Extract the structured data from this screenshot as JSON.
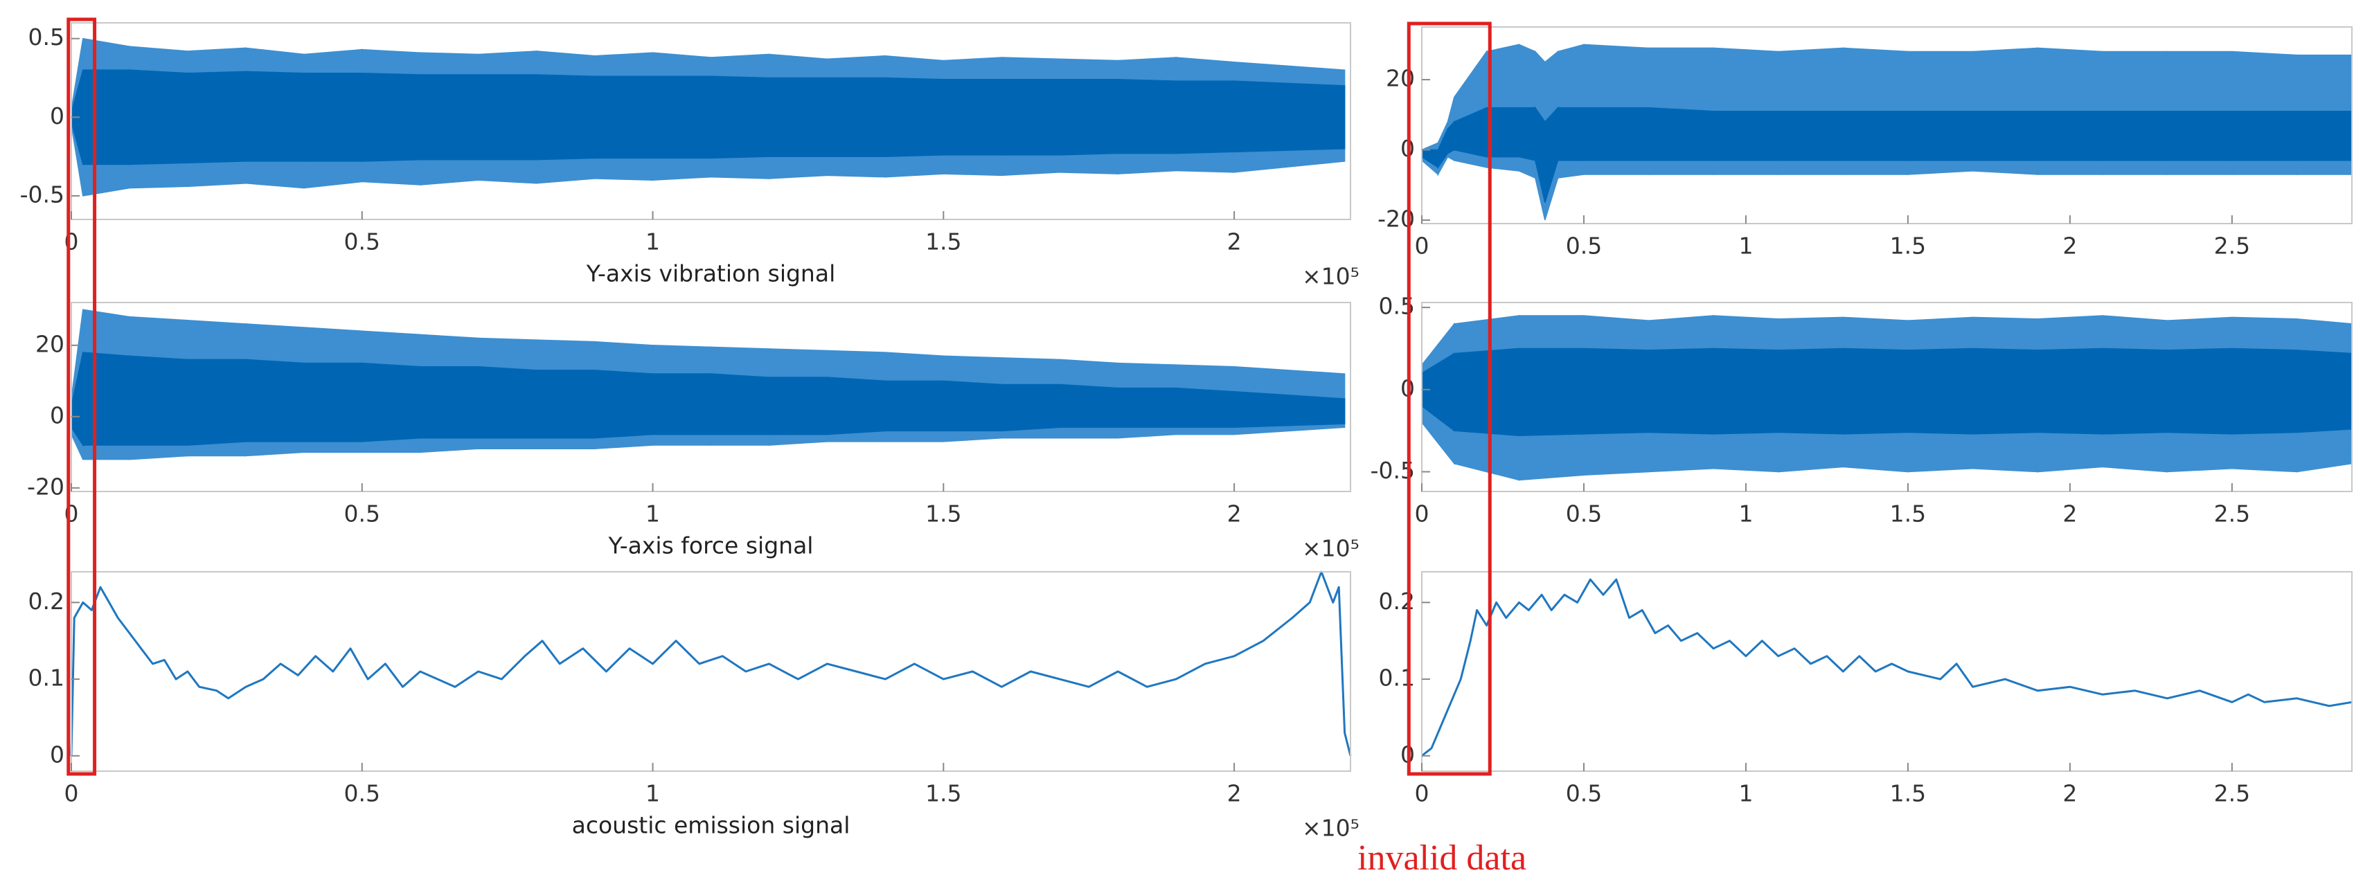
{
  "chart_data": [
    {
      "type": "band",
      "xlabel": "Y-axis vibration signal",
      "x_exponent": "×10⁵",
      "x": [
        0,
        0.02,
        0.1,
        0.2,
        0.3,
        0.4,
        0.5,
        0.6,
        0.7,
        0.8,
        0.9,
        1.0,
        1.1,
        1.2,
        1.3,
        1.4,
        1.5,
        1.6,
        1.7,
        1.8,
        1.9,
        2.0,
        2.19
      ],
      "series": [
        {
          "color": "#3d8fd1",
          "upper": [
            0.05,
            0.5,
            0.45,
            0.42,
            0.44,
            0.4,
            0.43,
            0.41,
            0.4,
            0.42,
            0.39,
            0.41,
            0.38,
            0.4,
            0.37,
            0.39,
            0.36,
            0.38,
            0.37,
            0.36,
            0.38,
            0.35,
            0.3
          ],
          "lower": [
            -0.05,
            -0.5,
            -0.45,
            -0.44,
            -0.42,
            -0.45,
            -0.41,
            -0.43,
            -0.4,
            -0.42,
            -0.39,
            -0.4,
            -0.38,
            -0.39,
            -0.37,
            -0.38,
            -0.36,
            -0.37,
            -0.35,
            -0.36,
            -0.34,
            -0.35,
            -0.28
          ]
        },
        {
          "color": "#0066b3",
          "upper": [
            0.03,
            0.3,
            0.3,
            0.28,
            0.29,
            0.28,
            0.28,
            0.27,
            0.27,
            0.27,
            0.26,
            0.26,
            0.26,
            0.25,
            0.25,
            0.25,
            0.24,
            0.24,
            0.24,
            0.24,
            0.23,
            0.23,
            0.2
          ],
          "lower": [
            -0.03,
            -0.3,
            -0.3,
            -0.29,
            -0.28,
            -0.28,
            -0.28,
            -0.27,
            -0.27,
            -0.27,
            -0.26,
            -0.26,
            -0.26,
            -0.25,
            -0.25,
            -0.25,
            -0.24,
            -0.24,
            -0.24,
            -0.23,
            -0.23,
            -0.22,
            -0.2
          ]
        }
      ],
      "xlim": [
        0,
        2.2
      ],
      "ylim": [
        -0.65,
        0.6
      ],
      "xticks": [
        0,
        0.5,
        1,
        1.5,
        2
      ],
      "yticks": [
        0.5,
        0,
        -0.5
      ]
    },
    {
      "type": "band",
      "xlabel": "Y-axis force signal",
      "x_exponent": "×10⁵",
      "x": [
        0,
        0.02,
        0.1,
        0.2,
        0.3,
        0.4,
        0.5,
        0.6,
        0.7,
        0.8,
        0.9,
        1.0,
        1.1,
        1.2,
        1.3,
        1.4,
        1.5,
        1.6,
        1.7,
        1.8,
        1.9,
        2.0,
        2.19
      ],
      "series": [
        {
          "color": "#3d8fd1",
          "upper": [
            5,
            30,
            28,
            27,
            26,
            25,
            24,
            23,
            22,
            21.5,
            21,
            20,
            19.5,
            19,
            18.5,
            18,
            17,
            16.5,
            16,
            15,
            14.5,
            14,
            12
          ],
          "lower": [
            -5,
            -12,
            -12,
            -11,
            -11,
            -10,
            -10,
            -10,
            -9,
            -9,
            -9,
            -8,
            -8,
            -8,
            -7,
            -7,
            -7,
            -6,
            -6,
            -6,
            -5,
            -5,
            -3
          ]
        },
        {
          "color": "#0066b3",
          "upper": [
            3,
            18,
            17,
            16,
            16,
            15,
            15,
            14,
            14,
            13,
            13,
            12,
            12,
            11,
            11,
            10,
            10,
            9,
            9,
            8,
            8,
            7,
            5
          ],
          "lower": [
            -3,
            -8,
            -8,
            -8,
            -7,
            -7,
            -7,
            -6,
            -6,
            -6,
            -6,
            -5,
            -5,
            -5,
            -5,
            -4,
            -4,
            -4,
            -3,
            -3,
            -3,
            -3,
            -2
          ]
        }
      ],
      "xlim": [
        0,
        2.2
      ],
      "ylim": [
        -21,
        32
      ],
      "xticks": [
        0,
        0.5,
        1,
        1.5,
        2
      ],
      "yticks": [
        20,
        0,
        -20
      ]
    },
    {
      "type": "line",
      "xlabel": "acoustic emission signal",
      "x_exponent": "×10⁵",
      "color": "#1f77c0",
      "x": [
        0,
        0.005,
        0.02,
        0.035,
        0.05,
        0.065,
        0.08,
        0.1,
        0.12,
        0.14,
        0.16,
        0.18,
        0.2,
        0.22,
        0.25,
        0.27,
        0.3,
        0.33,
        0.36,
        0.39,
        0.42,
        0.45,
        0.48,
        0.51,
        0.54,
        0.57,
        0.6,
        0.63,
        0.66,
        0.7,
        0.74,
        0.78,
        0.81,
        0.84,
        0.88,
        0.92,
        0.96,
        1.0,
        1.04,
        1.08,
        1.12,
        1.16,
        1.2,
        1.25,
        1.3,
        1.35,
        1.4,
        1.45,
        1.5,
        1.55,
        1.6,
        1.65,
        1.7,
        1.75,
        1.8,
        1.85,
        1.9,
        1.95,
        2.0,
        2.05,
        2.1,
        2.13,
        2.15,
        2.17,
        2.18,
        2.19,
        2.2
      ],
      "values": [
        0,
        0.18,
        0.2,
        0.19,
        0.22,
        0.2,
        0.18,
        0.16,
        0.14,
        0.12,
        0.125,
        0.1,
        0.11,
        0.09,
        0.085,
        0.075,
        0.09,
        0.1,
        0.12,
        0.105,
        0.13,
        0.11,
        0.14,
        0.1,
        0.12,
        0.09,
        0.11,
        0.1,
        0.09,
        0.11,
        0.1,
        0.13,
        0.15,
        0.12,
        0.14,
        0.11,
        0.14,
        0.12,
        0.15,
        0.12,
        0.13,
        0.11,
        0.12,
        0.1,
        0.12,
        0.11,
        0.1,
        0.12,
        0.1,
        0.11,
        0.09,
        0.11,
        0.1,
        0.09,
        0.11,
        0.09,
        0.1,
        0.12,
        0.13,
        0.15,
        0.18,
        0.2,
        0.24,
        0.2,
        0.22,
        0.03,
        0
      ],
      "xlim": [
        0,
        2.2
      ],
      "ylim": [
        -0.02,
        0.24
      ],
      "xticks": [
        0,
        0.5,
        1,
        1.5,
        2
      ],
      "yticks": [
        0.2,
        0.1,
        0
      ]
    },
    {
      "type": "band",
      "x": [
        0,
        0.05,
        0.08,
        0.1,
        0.2,
        0.3,
        0.35,
        0.38,
        0.42,
        0.5,
        0.7,
        0.9,
        1.1,
        1.3,
        1.5,
        1.7,
        1.9,
        2.1,
        2.3,
        2.5,
        2.7,
        2.87
      ],
      "series": [
        {
          "color": "#3d8fd1",
          "upper": [
            0,
            2,
            8,
            15,
            28,
            30,
            28,
            25,
            28,
            30,
            29,
            29,
            28,
            29,
            28,
            28,
            29,
            28,
            28,
            28,
            27,
            27
          ],
          "lower": [
            -3,
            -7,
            -2,
            -3,
            -5,
            -6,
            -8,
            -20,
            -8,
            -7,
            -7,
            -7,
            -7,
            -7,
            -7,
            -6,
            -7,
            -7,
            -7,
            -7,
            -7,
            -7
          ]
        },
        {
          "color": "#0066b3",
          "upper": [
            0,
            0,
            6,
            8,
            12,
            12,
            12,
            8,
            12,
            12,
            12,
            11,
            11,
            11,
            11,
            11,
            11,
            11,
            11,
            11,
            11,
            11
          ],
          "lower": [
            -2,
            -5,
            -1,
            0,
            -2,
            -2,
            -3,
            -15,
            -3,
            -3,
            -3,
            -3,
            -3,
            -3,
            -3,
            -3,
            -3,
            -3,
            -3,
            -3,
            -3,
            -3
          ]
        }
      ],
      "xlim": [
        0,
        2.87
      ],
      "ylim": [
        -21,
        35
      ],
      "xticks": [
        0,
        0.5,
        1,
        1.5,
        2,
        2.5
      ],
      "yticks": [
        20,
        0,
        -20
      ]
    },
    {
      "type": "band",
      "x": [
        0,
        0.1,
        0.3,
        0.5,
        0.7,
        0.9,
        1.1,
        1.3,
        1.5,
        1.7,
        1.9,
        2.1,
        2.3,
        2.5,
        2.7,
        2.87
      ],
      "series": [
        {
          "color": "#3d8fd1",
          "upper": [
            0.15,
            0.4,
            0.45,
            0.45,
            0.42,
            0.45,
            0.43,
            0.44,
            0.42,
            0.44,
            0.43,
            0.45,
            0.42,
            0.44,
            0.43,
            0.4
          ],
          "lower": [
            -0.2,
            -0.45,
            -0.55,
            -0.52,
            -0.5,
            -0.48,
            -0.5,
            -0.47,
            -0.5,
            -0.48,
            -0.5,
            -0.47,
            -0.5,
            -0.48,
            -0.5,
            -0.45
          ]
        },
        {
          "color": "#0066b3",
          "upper": [
            0.1,
            0.22,
            0.25,
            0.25,
            0.24,
            0.25,
            0.24,
            0.25,
            0.24,
            0.25,
            0.24,
            0.25,
            0.24,
            0.25,
            0.24,
            0.22
          ],
          "lower": [
            -0.1,
            -0.25,
            -0.28,
            -0.27,
            -0.26,
            -0.27,
            -0.26,
            -0.27,
            -0.26,
            -0.27,
            -0.26,
            -0.27,
            -0.26,
            -0.27,
            -0.26,
            -0.24
          ]
        }
      ],
      "xlim": [
        0,
        2.87
      ],
      "ylim": [
        -0.62,
        0.53
      ],
      "xticks": [
        0,
        0.5,
        1,
        1.5,
        2,
        2.5
      ],
      "yticks": [
        0.5,
        0,
        -0.5
      ]
    },
    {
      "type": "line",
      "color": "#1f77c0",
      "x": [
        0,
        0.03,
        0.06,
        0.09,
        0.12,
        0.15,
        0.17,
        0.2,
        0.23,
        0.26,
        0.3,
        0.33,
        0.37,
        0.4,
        0.44,
        0.48,
        0.52,
        0.56,
        0.6,
        0.64,
        0.68,
        0.72,
        0.76,
        0.8,
        0.85,
        0.9,
        0.95,
        1.0,
        1.05,
        1.1,
        1.15,
        1.2,
        1.25,
        1.3,
        1.35,
        1.4,
        1.45,
        1.5,
        1.6,
        1.65,
        1.7,
        1.8,
        1.9,
        2.0,
        2.1,
        2.2,
        2.3,
        2.4,
        2.5,
        2.55,
        2.6,
        2.7,
        2.8,
        2.87
      ],
      "values": [
        0,
        0.01,
        0.04,
        0.07,
        0.1,
        0.15,
        0.19,
        0.17,
        0.2,
        0.18,
        0.2,
        0.19,
        0.21,
        0.19,
        0.21,
        0.2,
        0.23,
        0.21,
        0.23,
        0.18,
        0.19,
        0.16,
        0.17,
        0.15,
        0.16,
        0.14,
        0.15,
        0.13,
        0.15,
        0.13,
        0.14,
        0.12,
        0.13,
        0.11,
        0.13,
        0.11,
        0.12,
        0.11,
        0.1,
        0.12,
        0.09,
        0.1,
        0.085,
        0.09,
        0.08,
        0.085,
        0.075,
        0.085,
        0.07,
        0.08,
        0.07,
        0.075,
        0.065,
        0.07
      ],
      "xlim": [
        0,
        2.87
      ],
      "ylim": [
        -0.02,
        0.24
      ],
      "xticks": [
        0,
        0.5,
        1,
        1.5,
        2,
        2.5
      ],
      "yticks": [
        0.2,
        0.1,
        0
      ]
    }
  ],
  "annotation": {
    "text": "invalid data",
    "color": "#e02020",
    "regions": [
      [
        -0.005,
        0.04
      ],
      [
        -0.04,
        0.21
      ]
    ]
  }
}
